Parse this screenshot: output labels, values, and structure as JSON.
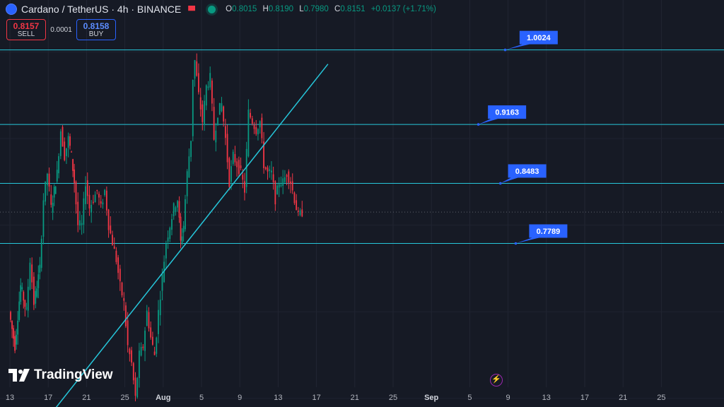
{
  "header": {
    "title": "Cardano / TetherUS · 4h · BINANCE",
    "ohlc": [
      {
        "k": "O",
        "v": "0.8015"
      },
      {
        "k": "H",
        "v": "0.8190"
      },
      {
        "k": "L",
        "v": "0.7980"
      },
      {
        "k": "C",
        "v": "0.8151"
      },
      {
        "k": "",
        "v": "+0.0137 (+1.71%)"
      }
    ]
  },
  "trade": {
    "sell_price": "0.8157",
    "sell_label": "SELL",
    "spread": "0.0001",
    "buy_price": "0.8158",
    "buy_label": "BUY"
  },
  "branding": {
    "logo_text": "TradingView"
  },
  "colors": {
    "up": "#089981",
    "down": "#f23645",
    "lines": "#26c6da",
    "label_bg": "#2962ff",
    "background": "#161a25"
  },
  "chart_data": {
    "type": "candlestick",
    "symbol": "ADAUSDT",
    "interval": "4h",
    "ylim": [
      0.59,
      1.06
    ],
    "x_ticks": [
      "13",
      "17",
      "21",
      "25",
      "Aug",
      "5",
      "9",
      "13",
      "17",
      "21",
      "25",
      "Sep",
      "5",
      "9",
      "13",
      "17",
      "21",
      "25"
    ],
    "last_candle_index": 30.6,
    "horizontal_levels": [
      {
        "value": 1.0024,
        "label": "1.0024"
      },
      {
        "value": 0.9163,
        "label": "0.9163"
      },
      {
        "value": 0.8483,
        "label": "0.8483"
      },
      {
        "value": 0.7789,
        "label": "0.7789"
      }
    ],
    "current_price": 0.8151,
    "trendline": {
      "start": {
        "day": 4.5,
        "price": 0.585
      },
      "end": {
        "day": 33.2,
        "price": 0.986
      }
    },
    "series": [
      {
        "day": 0.0,
        "close": 0.7
      },
      {
        "day": 0.6,
        "close": 0.66
      },
      {
        "day": 1.2,
        "close": 0.73
      },
      {
        "day": 1.8,
        "close": 0.7
      },
      {
        "day": 2.2,
        "close": 0.76
      },
      {
        "day": 2.6,
        "close": 0.71
      },
      {
        "day": 3.2,
        "close": 0.75
      },
      {
        "day": 3.6,
        "close": 0.83
      },
      {
        "day": 4.0,
        "close": 0.86
      },
      {
        "day": 4.4,
        "close": 0.82
      },
      {
        "day": 5.0,
        "close": 0.86
      },
      {
        "day": 5.4,
        "close": 0.91
      },
      {
        "day": 5.8,
        "close": 0.88
      },
      {
        "day": 6.2,
        "close": 0.9
      },
      {
        "day": 6.5,
        "close": 0.88
      },
      {
        "day": 6.8,
        "close": 0.85
      },
      {
        "day": 7.2,
        "close": 0.8
      },
      {
        "day": 7.6,
        "close": 0.8
      },
      {
        "day": 8.0,
        "close": 0.85
      },
      {
        "day": 8.4,
        "close": 0.82
      },
      {
        "day": 8.8,
        "close": 0.83
      },
      {
        "day": 9.2,
        "close": 0.84
      },
      {
        "day": 9.6,
        "close": 0.82
      },
      {
        "day": 10.0,
        "close": 0.84
      },
      {
        "day": 10.4,
        "close": 0.8
      },
      {
        "day": 10.8,
        "close": 0.78
      },
      {
        "day": 11.2,
        "close": 0.76
      },
      {
        "day": 11.6,
        "close": 0.73
      },
      {
        "day": 12.0,
        "close": 0.71
      },
      {
        "day": 12.4,
        "close": 0.66
      },
      {
        "day": 12.8,
        "close": 0.64
      },
      {
        "day": 13.2,
        "close": 0.6
      },
      {
        "day": 13.6,
        "close": 0.65
      },
      {
        "day": 14.0,
        "close": 0.66
      },
      {
        "day": 14.4,
        "close": 0.7
      },
      {
        "day": 14.8,
        "close": 0.67
      },
      {
        "day": 15.2,
        "close": 0.65
      },
      {
        "day": 15.6,
        "close": 0.7
      },
      {
        "day": 16.0,
        "close": 0.74
      },
      {
        "day": 16.4,
        "close": 0.78
      },
      {
        "day": 16.8,
        "close": 0.8
      },
      {
        "day": 17.2,
        "close": 0.82
      },
      {
        "day": 17.6,
        "close": 0.83
      },
      {
        "day": 17.9,
        "close": 0.78
      },
      {
        "day": 18.2,
        "close": 0.8
      },
      {
        "day": 18.6,
        "close": 0.86
      },
      {
        "day": 19.0,
        "close": 0.9
      },
      {
        "day": 19.2,
        "close": 0.97
      },
      {
        "day": 19.4,
        "close": 0.99
      },
      {
        "day": 19.8,
        "close": 0.95
      },
      {
        "day": 20.2,
        "close": 0.92
      },
      {
        "day": 20.6,
        "close": 0.96
      },
      {
        "day": 21.0,
        "close": 0.97
      },
      {
        "day": 21.4,
        "close": 0.9
      },
      {
        "day": 21.8,
        "close": 0.93
      },
      {
        "day": 22.2,
        "close": 0.94
      },
      {
        "day": 22.6,
        "close": 0.9
      },
      {
        "day": 23.0,
        "close": 0.85
      },
      {
        "day": 23.4,
        "close": 0.88
      },
      {
        "day": 23.8,
        "close": 0.87
      },
      {
        "day": 24.2,
        "close": 0.86
      },
      {
        "day": 24.6,
        "close": 0.84
      },
      {
        "day": 25.0,
        "close": 0.93
      },
      {
        "day": 25.4,
        "close": 0.92
      },
      {
        "day": 25.8,
        "close": 0.91
      },
      {
        "day": 26.2,
        "close": 0.92
      },
      {
        "day": 26.6,
        "close": 0.87
      },
      {
        "day": 27.0,
        "close": 0.86
      },
      {
        "day": 27.4,
        "close": 0.86
      },
      {
        "day": 27.8,
        "close": 0.83
      },
      {
        "day": 28.2,
        "close": 0.85
      },
      {
        "day": 28.6,
        "close": 0.85
      },
      {
        "day": 29.0,
        "close": 0.86
      },
      {
        "day": 29.4,
        "close": 0.85
      },
      {
        "day": 29.8,
        "close": 0.83
      },
      {
        "day": 30.2,
        "close": 0.81
      },
      {
        "day": 30.6,
        "close": 0.8151
      }
    ]
  }
}
